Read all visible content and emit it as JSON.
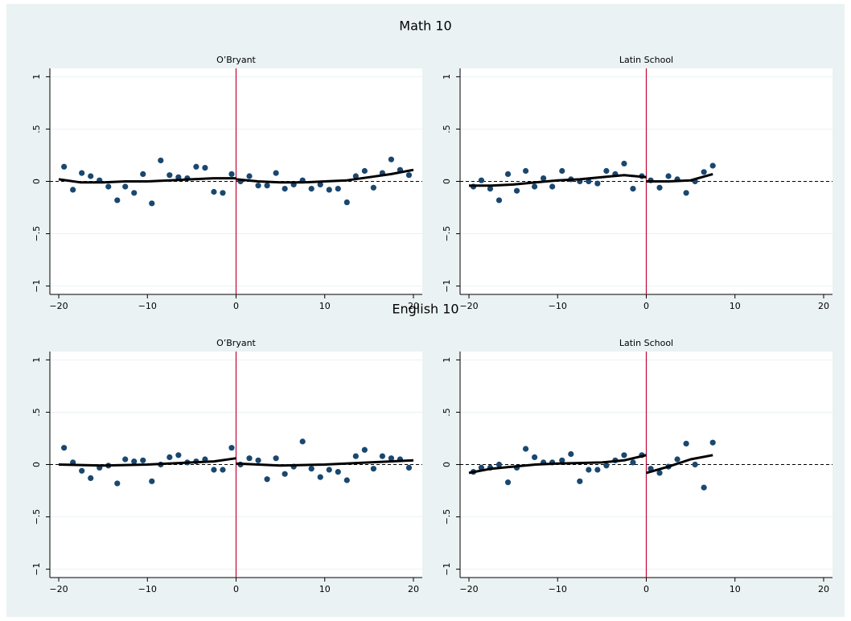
{
  "chart_data": [
    {
      "type": "scatter",
      "title": "Math 10",
      "subtitle": "O’Bryant",
      "xlim": [
        -21,
        21
      ],
      "ylim": [
        -1.08,
        1.08
      ],
      "xticks": [
        {
          "value": -20,
          "label": "−20"
        },
        {
          "value": -10,
          "label": "−10"
        },
        0,
        10,
        20
      ],
      "yticks": [
        {
          "value": -1,
          "label": "−1"
        },
        {
          "value": -0.5,
          "label": "−.5"
        },
        0,
        {
          "value": 0.5,
          "label": ".5"
        },
        1
      ],
      "grid": true,
      "xline": 0,
      "xline_color": "#c10534",
      "yline": 0,
      "series": [
        {
          "mode": "markers",
          "color": "#1a476f",
          "x": [
            -19.4,
            -18.4,
            -17.4,
            -16.4,
            -15.4,
            -14.4,
            -13.4,
            -12.5,
            -11.5,
            -10.5,
            -9.5,
            -8.5,
            -7.5,
            -6.5,
            -5.5,
            -4.5,
            -3.5,
            -2.5,
            -1.5,
            -0.5,
            0.5,
            1.5,
            2.5,
            3.5,
            4.5,
            5.5,
            6.5,
            7.5,
            8.5,
            9.5,
            10.5,
            11.5,
            12.5,
            13.5,
            14.5,
            15.5,
            16.5,
            17.5,
            18.5,
            19.5
          ],
          "values": [
            0.14,
            -0.08,
            0.08,
            0.05,
            0.01,
            -0.05,
            -0.18,
            -0.05,
            -0.11,
            0.07,
            -0.21,
            0.2,
            0.06,
            0.04,
            0.03,
            0.14,
            0.13,
            -0.1,
            -0.11,
            0.07,
            0.0,
            0.05,
            -0.04,
            -0.04,
            0.08,
            -0.07,
            -0.03,
            0.01,
            -0.07,
            -0.03,
            -0.08,
            -0.07,
            -0.2,
            0.05,
            0.1,
            -0.06,
            0.08,
            0.21,
            0.11,
            0.06
          ]
        },
        {
          "mode": "line",
          "color": "#000000",
          "x": [
            -20,
            -17.5,
            -15,
            -12.5,
            -10,
            -7.5,
            -5,
            -2.5,
            0
          ],
          "values": [
            0.02,
            -0.01,
            -0.01,
            0,
            0,
            0.01,
            0.02,
            0.03,
            0.03
          ]
        },
        {
          "mode": "line",
          "color": "#000000",
          "x": [
            0,
            2.5,
            5,
            7.5,
            10,
            12.5,
            15,
            17.5,
            20
          ],
          "values": [
            0.02,
            0,
            -0.01,
            -0.01,
            0,
            0.01,
            0.04,
            0.07,
            0.11
          ]
        }
      ]
    },
    {
      "type": "scatter",
      "subtitle": "Latin School",
      "xlim": [
        -21,
        21
      ],
      "ylim": [
        -1.08,
        1.08
      ],
      "xticks": [
        {
          "value": -20,
          "label": "−20"
        },
        {
          "value": -10,
          "label": "−10"
        },
        0,
        10,
        20
      ],
      "yticks": [
        {
          "value": -1,
          "label": "−1"
        },
        {
          "value": -0.5,
          "label": "−.5"
        },
        0,
        {
          "value": 0.5,
          "label": ".5"
        },
        1
      ],
      "grid": true,
      "xline": 0,
      "xline_color": "#c10534",
      "yline": 0,
      "series": [
        {
          "mode": "markers",
          "color": "#1a476f",
          "x": [
            -19.5,
            -18.6,
            -17.6,
            -16.6,
            -15.6,
            -14.6,
            -13.6,
            -12.6,
            -11.6,
            -10.6,
            -9.5,
            -8.5,
            -7.5,
            -6.5,
            -5.5,
            -4.5,
            -3.5,
            -2.5,
            -1.5,
            -0.5,
            0.5,
            1.5,
            2.5,
            3.5,
            4.5,
            5.5,
            6.5,
            7.5
          ],
          "values": [
            -0.05,
            0.01,
            -0.07,
            -0.18,
            0.07,
            -0.09,
            0.1,
            -0.05,
            0.03,
            -0.05,
            0.1,
            0.02,
            0.0,
            0.0,
            -0.02,
            0.1,
            0.07,
            0.17,
            -0.07,
            0.05,
            0.01,
            -0.06,
            0.05,
            0.02,
            -0.11,
            0.0,
            0.09,
            0.15
          ]
        },
        {
          "mode": "line",
          "color": "#000000",
          "x": [
            -20,
            -17.5,
            -15,
            -12.5,
            -10,
            -7.5,
            -5,
            -2.5,
            0
          ],
          "values": [
            -0.04,
            -0.04,
            -0.03,
            -0.01,
            0.01,
            0.02,
            0.04,
            0.06,
            0.04
          ]
        },
        {
          "mode": "line",
          "color": "#000000",
          "x": [
            0,
            2.5,
            5,
            7.5
          ],
          "values": [
            0.0,
            0.0,
            0.01,
            0.07
          ]
        }
      ]
    },
    {
      "type": "scatter",
      "title": "English 10",
      "subtitle": "O’Bryant",
      "xlim": [
        -21,
        21
      ],
      "ylim": [
        -1.08,
        1.08
      ],
      "xticks": [
        {
          "value": -20,
          "label": "−20"
        },
        {
          "value": -10,
          "label": "−10"
        },
        0,
        10,
        20
      ],
      "yticks": [
        {
          "value": -1,
          "label": "−1"
        },
        {
          "value": -0.5,
          "label": "−.5"
        },
        0,
        {
          "value": 0.5,
          "label": ".5"
        },
        1
      ],
      "grid": true,
      "xline": 0,
      "xline_color": "#c10534",
      "yline": 0,
      "series": [
        {
          "mode": "markers",
          "color": "#1a476f",
          "x": [
            -19.4,
            -18.4,
            -17.4,
            -16.4,
            -15.4,
            -14.4,
            -13.4,
            -12.5,
            -11.5,
            -10.5,
            -9.5,
            -8.5,
            -7.5,
            -6.5,
            -5.5,
            -4.5,
            -3.5,
            -2.5,
            -1.5,
            -0.5,
            0.5,
            1.5,
            2.5,
            3.5,
            4.5,
            5.5,
            6.5,
            7.5,
            8.5,
            9.5,
            10.5,
            11.5,
            12.5,
            13.5,
            14.5,
            15.5,
            16.5,
            17.5,
            18.5,
            19.5
          ],
          "values": [
            0.16,
            0.02,
            -0.06,
            -0.13,
            -0.03,
            -0.01,
            -0.18,
            0.05,
            0.03,
            0.04,
            -0.16,
            0.0,
            0.07,
            0.09,
            0.02,
            0.03,
            0.05,
            -0.05,
            -0.05,
            0.16,
            0.0,
            0.06,
            0.04,
            -0.14,
            0.06,
            -0.09,
            -0.02,
            0.22,
            -0.04,
            -0.12,
            -0.05,
            -0.07,
            -0.15,
            0.08,
            0.14,
            -0.04,
            0.08,
            0.06,
            0.05,
            -0.03
          ]
        },
        {
          "mode": "line",
          "color": "#000000",
          "x": [
            -20,
            -15,
            -10,
            -5,
            -2.5,
            0
          ],
          "values": [
            0.0,
            -0.01,
            0.0,
            0.02,
            0.03,
            0.06
          ]
        },
        {
          "mode": "line",
          "color": "#000000",
          "x": [
            0,
            5,
            10,
            15,
            20
          ],
          "values": [
            0.01,
            -0.01,
            0.0,
            0.02,
            0.04
          ]
        }
      ]
    },
    {
      "type": "scatter",
      "subtitle": "Latin School",
      "xlim": [
        -21,
        21
      ],
      "ylim": [
        -1.08,
        1.08
      ],
      "xticks": [
        {
          "value": -20,
          "label": "−20"
        },
        {
          "value": -10,
          "label": "−10"
        },
        0,
        10,
        20
      ],
      "yticks": [
        {
          "value": -1,
          "label": "−1"
        },
        {
          "value": -0.5,
          "label": "−.5"
        },
        0,
        {
          "value": 0.5,
          "label": ".5"
        },
        1
      ],
      "grid": true,
      "xline": 0,
      "xline_color": "#c10534",
      "yline": 0,
      "series": [
        {
          "mode": "markers",
          "color": "#1a476f",
          "x": [
            -19.5,
            -18.6,
            -17.6,
            -16.6,
            -15.6,
            -14.6,
            -13.6,
            -12.6,
            -11.6,
            -10.6,
            -9.5,
            -8.5,
            -7.5,
            -6.5,
            -5.5,
            -4.5,
            -3.5,
            -2.5,
            -1.5,
            -0.5,
            0.5,
            1.5,
            2.5,
            3.5,
            4.5,
            5.5,
            6.5,
            7.5
          ],
          "values": [
            -0.07,
            -0.03,
            -0.03,
            0.0,
            -0.17,
            -0.03,
            0.15,
            0.07,
            0.02,
            0.02,
            0.04,
            0.1,
            -0.16,
            -0.05,
            -0.05,
            -0.01,
            0.04,
            0.09,
            0.02,
            0.09,
            -0.04,
            -0.08,
            -0.02,
            0.05,
            0.2,
            0.0,
            -0.22,
            0.21
          ]
        },
        {
          "mode": "line",
          "color": "#000000",
          "x": [
            -20,
            -17.5,
            -15,
            -12.5,
            -10,
            -5,
            -2.5,
            0
          ],
          "values": [
            -0.08,
            -0.04,
            -0.02,
            0,
            0.01,
            0.02,
            0.04,
            0.09
          ]
        },
        {
          "mode": "line",
          "color": "#000000",
          "x": [
            0,
            2.5,
            5,
            7.5
          ],
          "values": [
            -0.08,
            -0.02,
            0.05,
            0.09
          ]
        }
      ]
    }
  ]
}
